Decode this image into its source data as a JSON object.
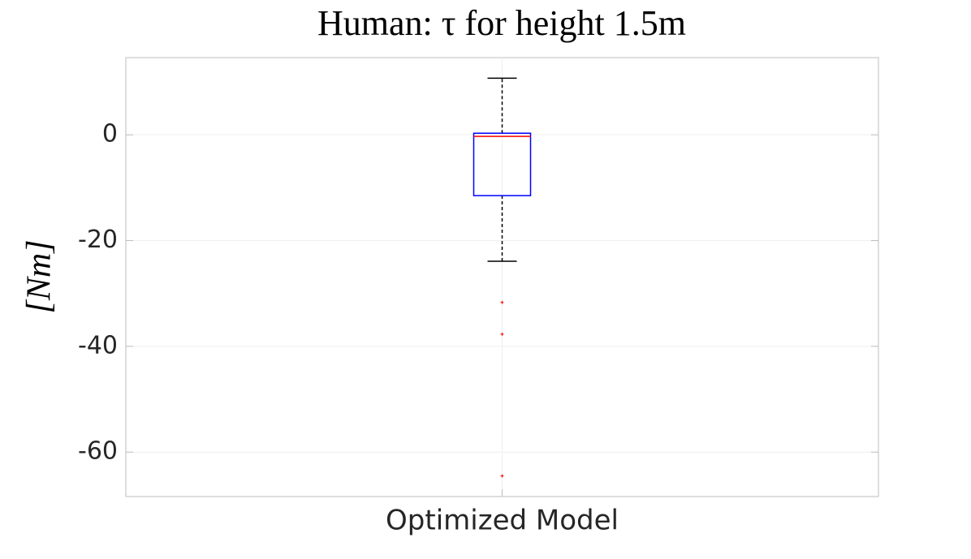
{
  "chart_data": {
    "type": "box",
    "title": "Human: τ for height 1.5m",
    "ylabel": "[Nm]",
    "categories": [
      "Optimized Model"
    ],
    "boxes": [
      {
        "whisker_low": -23.9,
        "q1": -11.5,
        "median": -0.3,
        "q3": 0.3,
        "whisker_high": 10.7,
        "outliers": [
          -31.7,
          -37.7,
          -64.5
        ]
      }
    ],
    "box_color": "#0000ff",
    "median_color": "#ff0000",
    "whisker_color": "#000000",
    "outlier_color": "#ff0000",
    "ylim": [
      -68.4,
      14.6
    ],
    "yticks": [
      -60,
      -40,
      -20,
      0
    ],
    "grid": true
  }
}
